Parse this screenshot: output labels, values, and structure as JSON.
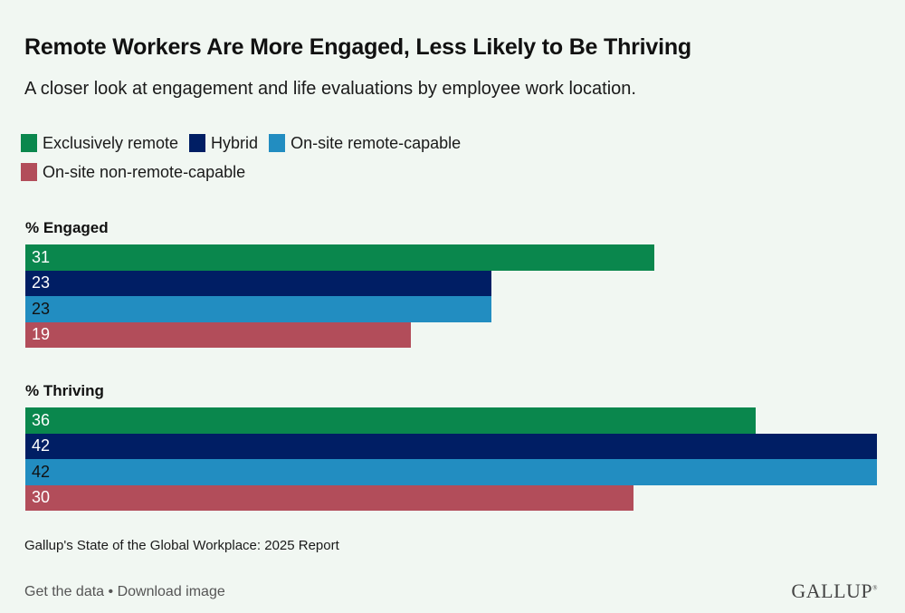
{
  "header": {
    "title": "Remote Workers Are More Engaged, Less Likely to Be Thriving",
    "subtitle": "A closer look at engagement and life evaluations by employee work location."
  },
  "chart_data": {
    "type": "bar",
    "orientation": "horizontal",
    "title": "Remote Workers Are More Engaged, Less Likely to Be Thriving",
    "subtitle": "A closer look at engagement and life evaluations by employee work location.",
    "xlim": [
      0,
      42
    ],
    "legend_position": "top-left",
    "legend": [
      {
        "name": "Exclusively remote",
        "color": "#0a874d"
      },
      {
        "name": "Hybrid",
        "color": "#001e64"
      },
      {
        "name": "On-site remote-capable",
        "color": "#228dc1"
      },
      {
        "name": "On-site non-remote-capable",
        "color": "#b24d5a"
      }
    ],
    "panels": [
      {
        "label": "% Engaged",
        "bars": [
          {
            "series": "Exclusively remote",
            "value": 31,
            "color": "#0a874d",
            "label_color": "#ffffff"
          },
          {
            "series": "Hybrid",
            "value": 23,
            "color": "#001e64",
            "label_color": "#ffffff"
          },
          {
            "series": "On-site remote-capable",
            "value": 23,
            "color": "#228dc1",
            "label_color": "#111111"
          },
          {
            "series": "On-site non-remote-capable",
            "value": 19,
            "color": "#b24d5a",
            "label_color": "#ffffff"
          }
        ]
      },
      {
        "label": "% Thriving",
        "bars": [
          {
            "series": "Exclusively remote",
            "value": 36,
            "color": "#0a874d",
            "label_color": "#ffffff"
          },
          {
            "series": "Hybrid",
            "value": 42,
            "color": "#001e64",
            "label_color": "#ffffff"
          },
          {
            "series": "On-site remote-capable",
            "value": 42,
            "color": "#228dc1",
            "label_color": "#111111"
          },
          {
            "series": "On-site non-remote-capable",
            "value": 30,
            "color": "#b24d5a",
            "label_color": "#ffffff"
          }
        ]
      }
    ]
  },
  "footer": {
    "source": "Gallup's State of the Global Workplace: 2025 Report",
    "get_data": "Get the data",
    "separator": " • ",
    "download": "Download image",
    "logo": "GALLUP",
    "logo_mark": "®"
  }
}
